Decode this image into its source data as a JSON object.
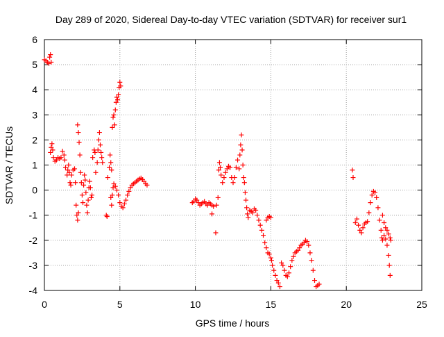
{
  "chart_data": {
    "type": "scatter",
    "title": "Day 289 of 2020, Sidereal Day-to-day VTEC variation (SDTVAR) for receiver sur1",
    "xlabel": "GPS time / hours",
    "ylabel": "SDTVAR / TECUs",
    "xlim": [
      0,
      25
    ],
    "ylim": [
      -4,
      6
    ],
    "xticks": [
      0,
      5,
      10,
      15,
      20,
      25
    ],
    "yticks": [
      -4,
      -3,
      -2,
      -1,
      0,
      1,
      2,
      3,
      4,
      5,
      6
    ],
    "grid": true,
    "marker": "+",
    "colors": {
      "series": "#ff0000",
      "grid": "#a0a0a0",
      "axis": "#000000"
    },
    "series": [
      {
        "name": "SDTVAR",
        "points": [
          [
            0.0,
            5.2
          ],
          [
            0.1,
            5.15
          ],
          [
            0.2,
            5.1
          ],
          [
            0.3,
            5.05
          ],
          [
            0.35,
            5.3
          ],
          [
            0.4,
            5.4
          ],
          [
            0.45,
            5.1
          ],
          [
            0.4,
            1.5
          ],
          [
            0.45,
            1.7
          ],
          [
            0.5,
            1.85
          ],
          [
            0.55,
            1.6
          ],
          [
            0.6,
            1.3
          ],
          [
            0.7,
            1.15
          ],
          [
            0.8,
            1.2
          ],
          [
            0.9,
            1.3
          ],
          [
            1.0,
            1.25
          ],
          [
            1.1,
            1.3
          ],
          [
            1.2,
            1.55
          ],
          [
            1.3,
            1.4
          ],
          [
            1.35,
            1.2
          ],
          [
            1.4,
            0.9
          ],
          [
            1.5,
            0.6
          ],
          [
            1.55,
            0.8
          ],
          [
            1.6,
            1.0
          ],
          [
            1.65,
            0.7
          ],
          [
            1.7,
            0.3
          ],
          [
            1.75,
            0.2
          ],
          [
            1.8,
            0.6
          ],
          [
            1.9,
            0.8
          ],
          [
            2.0,
            0.85
          ],
          [
            2.05,
            0.3
          ],
          [
            2.1,
            -0.6
          ],
          [
            2.15,
            -1.0
          ],
          [
            2.2,
            -1.2
          ],
          [
            2.25,
            -0.9
          ],
          [
            2.2,
            2.6
          ],
          [
            2.25,
            2.3
          ],
          [
            2.3,
            1.9
          ],
          [
            2.35,
            1.4
          ],
          [
            2.4,
            0.7
          ],
          [
            2.45,
            0.3
          ],
          [
            2.5,
            -0.2
          ],
          [
            2.55,
            -0.5
          ],
          [
            2.6,
            0.2
          ],
          [
            2.65,
            0.6
          ],
          [
            2.7,
            0.4
          ],
          [
            2.75,
            -0.1
          ],
          [
            2.8,
            -0.6
          ],
          [
            2.85,
            -0.9
          ],
          [
            2.9,
            -0.4
          ],
          [
            2.95,
            0.1
          ],
          [
            3.0,
            0.35
          ],
          [
            3.05,
            0.1
          ],
          [
            3.1,
            -0.3
          ],
          [
            3.15,
            -0.2
          ],
          [
            3.2,
            1.3
          ],
          [
            3.3,
            1.6
          ],
          [
            3.35,
            1.5
          ],
          [
            3.4,
            0.7
          ],
          [
            3.5,
            1.1
          ],
          [
            3.55,
            1.6
          ],
          [
            3.6,
            2.0
          ],
          [
            3.65,
            2.3
          ],
          [
            3.7,
            1.8
          ],
          [
            3.75,
            1.5
          ],
          [
            3.8,
            1.3
          ],
          [
            3.85,
            1.1
          ],
          [
            4.1,
            -1.0
          ],
          [
            4.15,
            -1.05
          ],
          [
            4.2,
            0.5
          ],
          [
            4.3,
            0.9
          ],
          [
            4.35,
            1.4
          ],
          [
            4.4,
            1.1
          ],
          [
            4.45,
            0.8
          ],
          [
            4.5,
            2.5
          ],
          [
            4.55,
            2.9
          ],
          [
            4.6,
            3.0
          ],
          [
            4.65,
            2.6
          ],
          [
            4.7,
            3.2
          ],
          [
            4.75,
            3.5
          ],
          [
            4.8,
            3.7
          ],
          [
            4.85,
            3.6
          ],
          [
            4.9,
            3.8
          ],
          [
            4.95,
            4.1
          ],
          [
            5.0,
            4.3
          ],
          [
            5.05,
            4.15
          ],
          [
            4.4,
            -0.3
          ],
          [
            4.45,
            -0.6
          ],
          [
            4.5,
            -0.2
          ],
          [
            4.55,
            0.1
          ],
          [
            4.6,
            0.25
          ],
          [
            4.7,
            0.15
          ],
          [
            4.8,
            0.0
          ],
          [
            4.9,
            -0.2
          ],
          [
            5.0,
            -0.5
          ],
          [
            5.1,
            -0.65
          ],
          [
            5.2,
            -0.7
          ],
          [
            5.3,
            -0.55
          ],
          [
            5.4,
            -0.4
          ],
          [
            5.5,
            -0.2
          ],
          [
            5.6,
            -0.05
          ],
          [
            5.7,
            0.1
          ],
          [
            5.8,
            0.2
          ],
          [
            5.9,
            0.25
          ],
          [
            6.0,
            0.3
          ],
          [
            6.1,
            0.35
          ],
          [
            6.2,
            0.4
          ],
          [
            6.3,
            0.45
          ],
          [
            6.4,
            0.48
          ],
          [
            6.5,
            0.42
          ],
          [
            6.6,
            0.35
          ],
          [
            6.7,
            0.25
          ],
          [
            6.8,
            0.2
          ],
          [
            9.8,
            -0.5
          ],
          [
            9.9,
            -0.45
          ],
          [
            10.0,
            -0.35
          ],
          [
            10.1,
            -0.4
          ],
          [
            10.2,
            -0.5
          ],
          [
            10.3,
            -0.6
          ],
          [
            10.4,
            -0.55
          ],
          [
            10.5,
            -0.5
          ],
          [
            10.6,
            -0.45
          ],
          [
            10.7,
            -0.55
          ],
          [
            10.8,
            -0.6
          ],
          [
            10.9,
            -0.5
          ],
          [
            11.0,
            -0.55
          ],
          [
            11.1,
            -0.6
          ],
          [
            11.2,
            -0.65
          ],
          [
            11.1,
            -0.95
          ],
          [
            11.35,
            -1.7
          ],
          [
            11.4,
            -0.6
          ],
          [
            11.5,
            -0.3
          ],
          [
            11.55,
            0.8
          ],
          [
            11.6,
            1.1
          ],
          [
            11.65,
            0.9
          ],
          [
            11.7,
            0.6
          ],
          [
            11.8,
            0.3
          ],
          [
            11.9,
            0.5
          ],
          [
            12.0,
            0.7
          ],
          [
            12.1,
            0.85
          ],
          [
            12.2,
            0.95
          ],
          [
            12.3,
            0.9
          ],
          [
            12.4,
            0.5
          ],
          [
            12.5,
            0.3
          ],
          [
            12.6,
            0.5
          ],
          [
            12.7,
            0.9
          ],
          [
            12.8,
            1.2
          ],
          [
            12.9,
            0.85
          ],
          [
            12.95,
            1.4
          ],
          [
            13.0,
            1.8
          ],
          [
            13.05,
            2.2
          ],
          [
            13.1,
            1.6
          ],
          [
            13.15,
            1.0
          ],
          [
            13.2,
            0.5
          ],
          [
            13.25,
            0.3
          ],
          [
            13.3,
            -0.1
          ],
          [
            13.35,
            -0.4
          ],
          [
            13.4,
            -0.7
          ],
          [
            13.45,
            -0.95
          ],
          [
            13.5,
            -1.1
          ],
          [
            13.6,
            -0.8
          ],
          [
            13.7,
            -0.85
          ],
          [
            13.8,
            -0.9
          ],
          [
            13.9,
            -0.75
          ],
          [
            14.0,
            -0.8
          ],
          [
            14.1,
            -1.0
          ],
          [
            14.2,
            -1.2
          ],
          [
            14.3,
            -1.4
          ],
          [
            14.4,
            -1.6
          ],
          [
            14.5,
            -1.8
          ],
          [
            14.6,
            -2.1
          ],
          [
            14.7,
            -2.3
          ],
          [
            14.8,
            -2.5
          ],
          [
            14.9,
            -2.55
          ],
          [
            15.0,
            -2.7
          ],
          [
            15.05,
            -2.8
          ],
          [
            15.1,
            -3.0
          ],
          [
            15.2,
            -3.2
          ],
          [
            15.3,
            -3.4
          ],
          [
            15.4,
            -3.6
          ],
          [
            15.5,
            -3.7
          ],
          [
            15.6,
            -3.85
          ],
          [
            14.7,
            -1.2
          ],
          [
            14.8,
            -1.1
          ],
          [
            14.9,
            -1.05
          ],
          [
            15.0,
            -1.1
          ],
          [
            15.7,
            -2.9
          ],
          [
            15.8,
            -3.0
          ],
          [
            15.9,
            -3.2
          ],
          [
            16.0,
            -3.4
          ],
          [
            16.1,
            -3.45
          ],
          [
            16.2,
            -3.3
          ],
          [
            16.3,
            -3.05
          ],
          [
            16.4,
            -2.8
          ],
          [
            16.5,
            -2.65
          ],
          [
            16.6,
            -2.5
          ],
          [
            16.7,
            -2.45
          ],
          [
            16.8,
            -2.4
          ],
          [
            16.9,
            -2.3
          ],
          [
            17.0,
            -2.2
          ],
          [
            17.1,
            -2.15
          ],
          [
            17.2,
            -2.1
          ],
          [
            17.3,
            -2.0
          ],
          [
            17.4,
            -2.05
          ],
          [
            17.5,
            -2.2
          ],
          [
            17.6,
            -2.5
          ],
          [
            17.7,
            -2.8
          ],
          [
            17.8,
            -3.2
          ],
          [
            17.9,
            -3.6
          ],
          [
            18.0,
            -3.85
          ],
          [
            18.1,
            -3.8
          ],
          [
            18.2,
            -3.75
          ],
          [
            20.4,
            0.8
          ],
          [
            20.45,
            0.5
          ],
          [
            20.6,
            -1.3
          ],
          [
            20.7,
            -1.15
          ],
          [
            20.8,
            -1.4
          ],
          [
            20.9,
            -1.6
          ],
          [
            21.0,
            -1.7
          ],
          [
            21.1,
            -1.5
          ],
          [
            21.2,
            -1.35
          ],
          [
            21.3,
            -1.3
          ],
          [
            21.4,
            -1.25
          ],
          [
            21.5,
            -0.9
          ],
          [
            21.6,
            -0.5
          ],
          [
            21.7,
            -0.2
          ],
          [
            21.8,
            -0.05
          ],
          [
            21.9,
            -0.1
          ],
          [
            22.0,
            -0.3
          ],
          [
            22.1,
            -0.7
          ],
          [
            22.2,
            -1.2
          ],
          [
            22.3,
            -1.6
          ],
          [
            22.35,
            -1.9
          ],
          [
            22.4,
            -2.0
          ],
          [
            22.5,
            -1.8
          ],
          [
            22.6,
            -1.95
          ],
          [
            22.7,
            -2.2
          ],
          [
            22.8,
            -2.6
          ],
          [
            22.85,
            -3.0
          ],
          [
            22.9,
            -3.4
          ],
          [
            22.4,
            -1.0
          ],
          [
            22.5,
            -1.3
          ],
          [
            22.6,
            -1.5
          ],
          [
            22.7,
            -1.6
          ],
          [
            22.8,
            -1.75
          ],
          [
            22.9,
            -1.9
          ],
          [
            22.95,
            -2.0
          ]
        ]
      }
    ]
  }
}
